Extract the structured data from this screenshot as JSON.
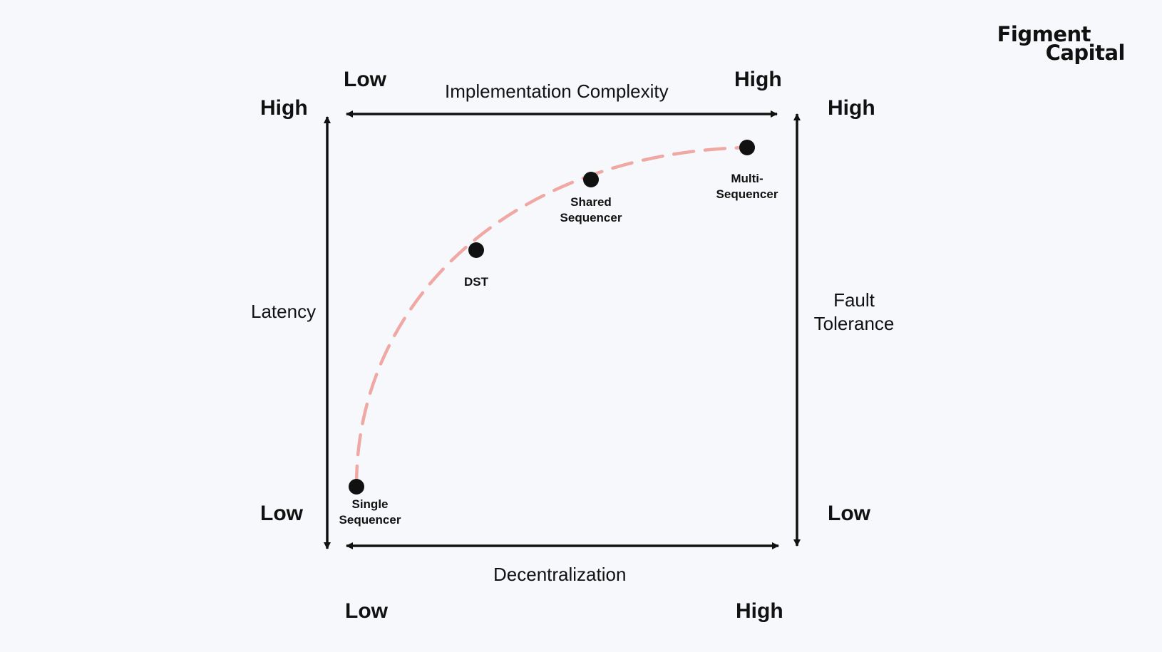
{
  "brand": {
    "line1": "Figment",
    "line2": "Capital"
  },
  "axes": {
    "top": {
      "title": "Implementation Complexity",
      "start_label": "Low",
      "end_label": "High"
    },
    "bottom": {
      "title": "Decentralization",
      "start_label": "Low",
      "end_label": "High"
    },
    "left": {
      "title": "Latency",
      "top_label": "High",
      "bottom_label": "Low"
    },
    "right": {
      "title_line1": "Fault",
      "title_line2": "Tolerance",
      "top_label": "High",
      "bottom_label": "Low"
    }
  },
  "points": [
    {
      "id": "single",
      "label_line1": "Single",
      "label_line2": "Sequencer"
    },
    {
      "id": "dst",
      "label_line1": "DST",
      "label_line2": ""
    },
    {
      "id": "shared",
      "label_line1": "Shared",
      "label_line2": "Sequencer"
    },
    {
      "id": "multi",
      "label_line1": "Multi-",
      "label_line2": "Sequencer"
    }
  ],
  "colors": {
    "curve": "#f0a8a4",
    "axis": "#111111",
    "point": "#111111",
    "background": "#f7f8fb"
  }
}
